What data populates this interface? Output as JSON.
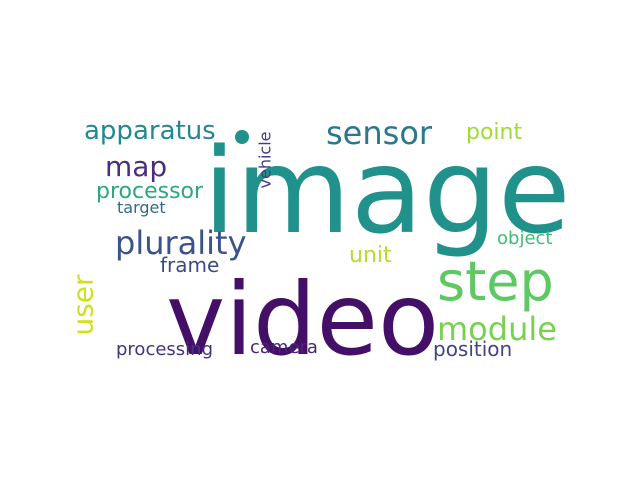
{
  "words": {
    "image": {
      "text": "image",
      "color": "#21918c"
    },
    "video": {
      "text": "video",
      "color": "#440f66"
    },
    "step": {
      "text": "step",
      "color": "#5ec962"
    },
    "sensor": {
      "text": "sensor",
      "color": "#2a788e"
    },
    "plurality": {
      "text": "plurality",
      "color": "#3b528b"
    },
    "module": {
      "text": "module",
      "color": "#7ad151"
    },
    "apparatus": {
      "text": "apparatus",
      "color": "#23898e"
    },
    "map": {
      "text": "map",
      "color": "#472f7d"
    },
    "processor": {
      "text": "processor",
      "color": "#2ea87b"
    },
    "point": {
      "text": "point",
      "color": "#a0da39"
    },
    "unit": {
      "text": "unit",
      "color": "#b5de2b"
    },
    "object": {
      "text": "object",
      "color": "#3fbc73"
    },
    "frame": {
      "text": "frame",
      "color": "#3e4989"
    },
    "target": {
      "text": "target",
      "color": "#31688e"
    },
    "processing": {
      "text": "processing",
      "color": "#46337f"
    },
    "camera": {
      "text": "camera",
      "color": "#482475"
    },
    "position": {
      "text": "position",
      "color": "#414487"
    },
    "user": {
      "text": "user",
      "color": "#d0e11c"
    },
    "vehicle": {
      "text": "vehicle",
      "color": "#443a83"
    }
  },
  "dot_color": "#21918c"
}
